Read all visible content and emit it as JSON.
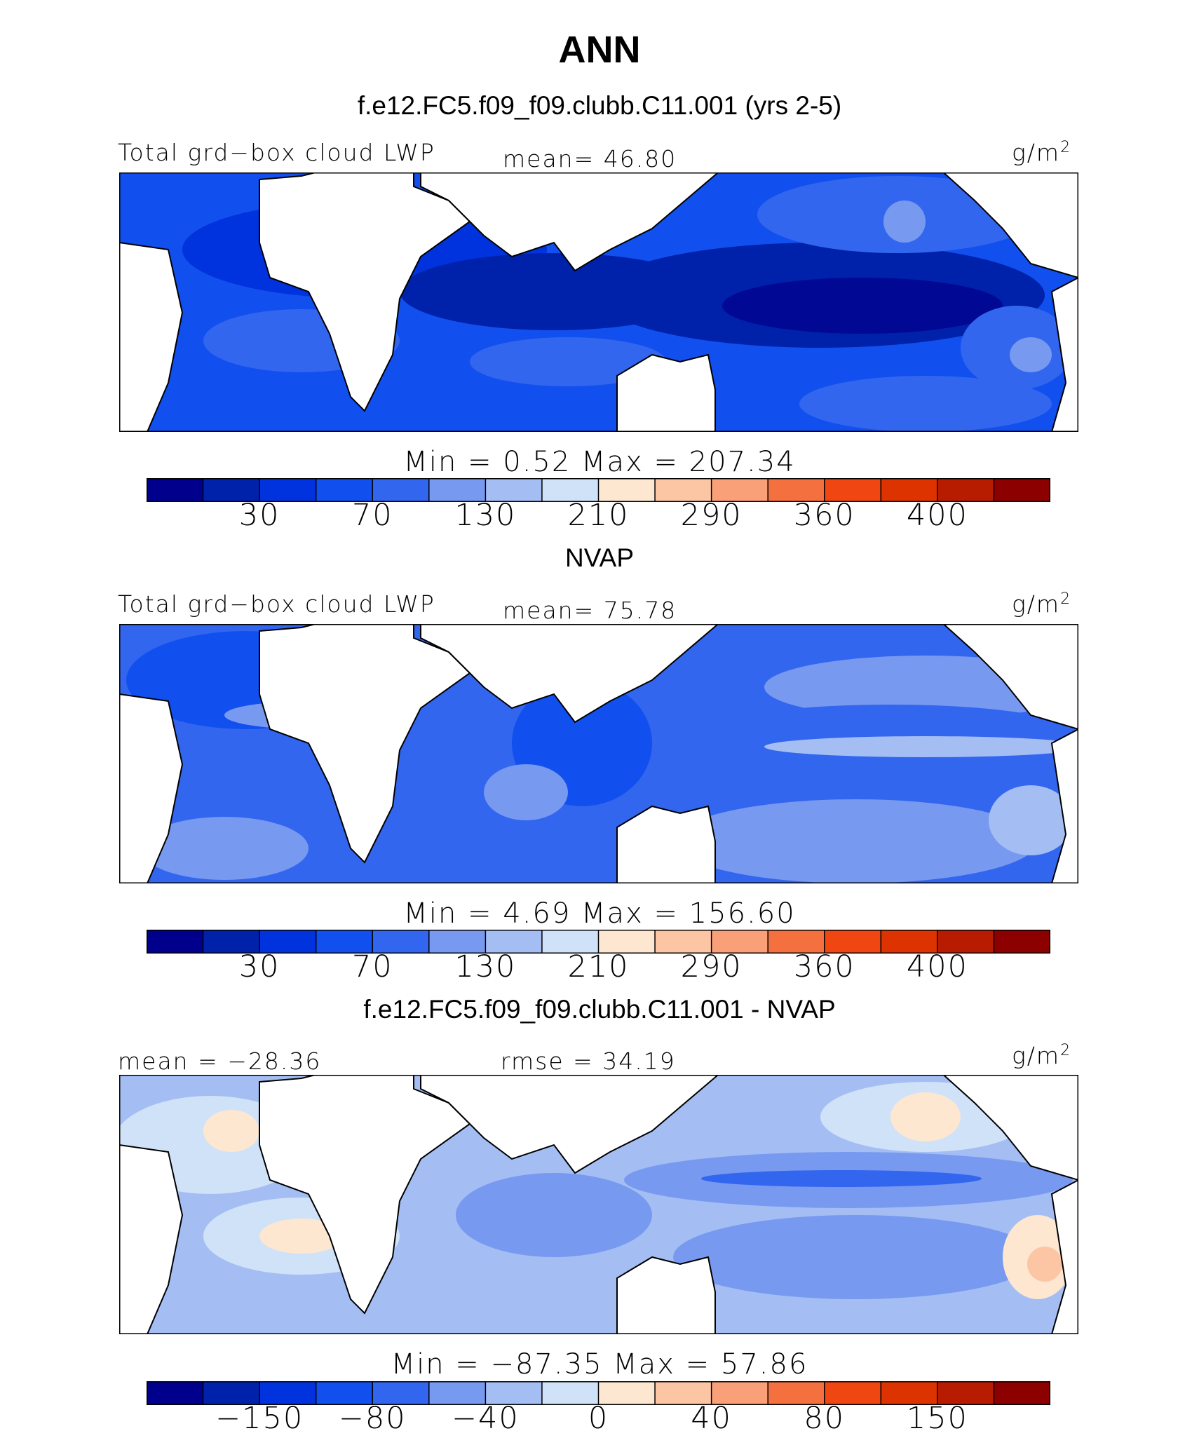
{
  "figure": {
    "title": "ANN"
  },
  "panels": [
    {
      "id": "model",
      "header": "f.e12.FC5.f09_f09.clubb.C11.001 (yrs 2-5)",
      "left_label": "Total grd−box cloud LWP",
      "center_label": "mean=  46.80",
      "units_base": "g/m",
      "units_exp": "2",
      "minmax": "Min =    0.52  Max = 207.34",
      "colorbar": {
        "colors": [
          "#00008c",
          "#0022aa",
          "#0033dd",
          "#1150ee",
          "#3366ee",
          "#7799f0",
          "#a4bef4",
          "#d0e2f8",
          "#fde7d0",
          "#fcc5a4",
          "#f9a078",
          "#f4703f",
          "#ef4612",
          "#dd3300",
          "#b81c00",
          "#8c0000"
        ],
        "tick_labels": [
          "30",
          "70",
          "130",
          "210",
          "290",
          "360",
          "400"
        ],
        "tick_boundaries": [
          2,
          4,
          6,
          8,
          10,
          12,
          14
        ]
      }
    },
    {
      "id": "obs",
      "header": "NVAP",
      "left_label": "Total grd−box cloud LWP",
      "center_label": "mean=  75.78",
      "units_base": "g/m",
      "units_exp": "2",
      "minmax": "Min =    4.69  Max = 156.60",
      "colorbar": {
        "colors": [
          "#00008c",
          "#0022aa",
          "#0033dd",
          "#1150ee",
          "#3366ee",
          "#7799f0",
          "#a4bef4",
          "#d0e2f8",
          "#fde7d0",
          "#fcc5a4",
          "#f9a078",
          "#f4703f",
          "#ef4612",
          "#dd3300",
          "#b81c00",
          "#8c0000"
        ],
        "tick_labels": [
          "30",
          "70",
          "130",
          "210",
          "290",
          "360",
          "400"
        ],
        "tick_boundaries": [
          2,
          4,
          6,
          8,
          10,
          12,
          14
        ]
      }
    },
    {
      "id": "diff",
      "header": "f.e12.FC5.f09_f09.clubb.C11.001 - NVAP",
      "left_label": "mean = −28.36",
      "center_label": "rmse =  34.19",
      "units_base": "g/m",
      "units_exp": "2",
      "minmax": "Min = −87.35  Max =  57.86",
      "colorbar": {
        "colors": [
          "#00008c",
          "#0022aa",
          "#0033dd",
          "#1150ee",
          "#3366ee",
          "#7799f0",
          "#a4bef4",
          "#d0e2f8",
          "#fde7d0",
          "#fcc5a4",
          "#f9a078",
          "#f4703f",
          "#ef4612",
          "#dd3300",
          "#b81c00",
          "#8c0000"
        ],
        "tick_labels": [
          "−150",
          "−80",
          "−40",
          "0",
          "40",
          "80",
          "150"
        ],
        "tick_boundaries": [
          2,
          4,
          6,
          8,
          10,
          12,
          14
        ]
      }
    }
  ]
}
